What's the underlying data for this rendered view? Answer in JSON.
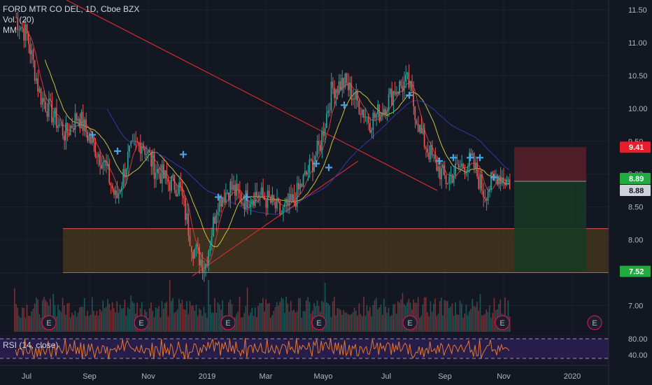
{
  "legend": {
    "symbol": "FORD MTR CO DEL, 1D, Cboe BZX",
    "volume": "Vol. (20)",
    "ma": "MM"
  },
  "rsi_label": "RSI (14, close)",
  "price_axis": [
    "11.50",
    "11.00",
    "10.50",
    "10.00",
    "9.50",
    "9.00",
    "8.50",
    "8.00",
    "7.50",
    "7.00"
  ],
  "rsi_axis": [
    "80.00",
    "40.00"
  ],
  "time_axis": [
    "Jul",
    "Sep",
    "Nov",
    "2019",
    "Mar",
    "Mayo",
    "Jul",
    "Sep",
    "Nov",
    "2020"
  ],
  "badges": {
    "stop": "9.41",
    "last1": "8.89",
    "last2": "8.88",
    "target": "7.52"
  },
  "earnings_marker": "E",
  "colors": {
    "background": "#131722",
    "up": "#26a69a",
    "down": "#ef5350",
    "stop_zone": "#5b1e28",
    "profit_zone": "#163a25",
    "support_zone": "#4a3a1c",
    "badge_red": "#e91e2c",
    "badge_green": "#1fab3e"
  },
  "chart_data": {
    "type": "candlestick",
    "title": "FORD MTR CO DEL, 1D, Cboe BZX",
    "ylim": [
      6.6,
      11.65
    ],
    "y_ticks": [
      7.0,
      7.5,
      8.0,
      8.5,
      9.0,
      9.5,
      10.0,
      10.5,
      11.0,
      11.5
    ],
    "x_ticks": [
      "Jul",
      "Sep",
      "Nov",
      "2019",
      "Mar",
      "Mayo",
      "Jul",
      "Sep",
      "Nov",
      "2020"
    ],
    "price_path": [
      [
        "Jul",
        11.4
      ],
      [
        "Jul",
        11.1
      ],
      [
        "Aug",
        10.2
      ],
      [
        "Aug",
        9.9
      ],
      [
        "Aug",
        9.6
      ],
      [
        "Sep",
        9.9
      ],
      [
        "Sep",
        9.5
      ],
      [
        "Oct",
        9.2
      ],
      [
        "Oct",
        8.6
      ],
      [
        "Oct",
        9.3
      ],
      [
        "Nov",
        9.5
      ],
      [
        "Nov",
        9.1
      ],
      [
        "Nov",
        8.9
      ],
      [
        "Dec",
        8.8
      ],
      [
        "Dec",
        7.9
      ],
      [
        "2019",
        7.6
      ],
      [
        "Jan",
        8.6
      ],
      [
        "Jan",
        8.8
      ],
      [
        "Feb",
        8.6
      ],
      [
        "Feb",
        8.7
      ],
      [
        "Mar",
        8.6
      ],
      [
        "Mar",
        8.4
      ],
      [
        "Apr",
        8.6
      ],
      [
        "Apr",
        9.0
      ],
      [
        "Apr",
        9.4
      ],
      [
        "Mayo",
        10.3
      ],
      [
        "Mayo",
        10.4
      ],
      [
        "May",
        10.1
      ],
      [
        "Jun",
        9.8
      ],
      [
        "Jun",
        10.0
      ],
      [
        "Jul",
        10.3
      ],
      [
        "Jul",
        10.4
      ],
      [
        "Aug",
        9.6
      ],
      [
        "Aug",
        9.2
      ],
      [
        "Aug",
        8.9
      ],
      [
        "Sep",
        9.1
      ],
      [
        "Sep",
        9.2
      ],
      [
        "Oct",
        8.7
      ],
      [
        "Oct",
        9.0
      ],
      [
        "Nov",
        8.88
      ]
    ],
    "trade_setup": {
      "entry": 8.89,
      "stop": 9.41,
      "target": 7.52
    },
    "support_zone": [
      7.5,
      8.17
    ],
    "rsi_levels": [
      80,
      40
    ]
  }
}
